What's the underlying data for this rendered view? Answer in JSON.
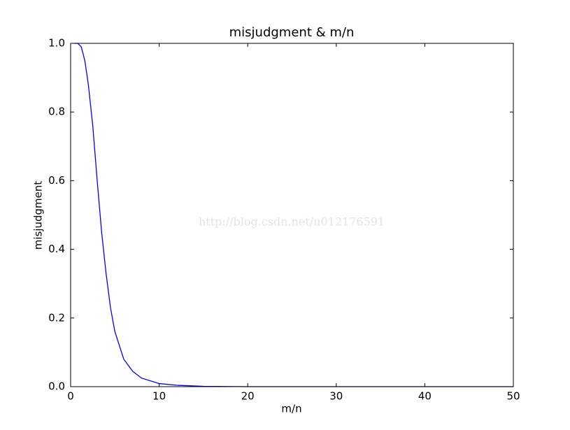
{
  "chart_data": {
    "type": "line",
    "title": "misjudgment & m/n",
    "x_label": "m/n",
    "y_label": "misjudgment",
    "watermark": "http://blog.csdn.net/u012176591",
    "x": [
      0.4,
      0.8,
      1.2,
      1.6,
      2,
      2.5,
      3,
      3.5,
      4,
      4.5,
      5,
      6,
      7,
      8,
      10,
      12,
      15,
      20,
      30,
      40,
      50
    ],
    "series": [
      {
        "name": "misjudgment",
        "color": "#0000ff",
        "values": [
          1.0,
          1.0,
          0.99,
          0.95,
          0.88,
          0.76,
          0.6,
          0.45,
          0.33,
          0.23,
          0.16,
          0.08,
          0.045,
          0.025,
          0.009,
          0.004,
          0.001,
          0,
          0,
          0,
          0
        ]
      }
    ],
    "xlim": [
      0,
      50
    ],
    "xticks": [
      0,
      10,
      20,
      30,
      40,
      50
    ],
    "ylim": [
      0,
      1
    ],
    "yticks": [
      {
        "value": 0,
        "label": "0.0"
      },
      0.2,
      0.4,
      0.6,
      0.8,
      {
        "value": 1,
        "label": "1.0"
      }
    ],
    "grid": false
  }
}
